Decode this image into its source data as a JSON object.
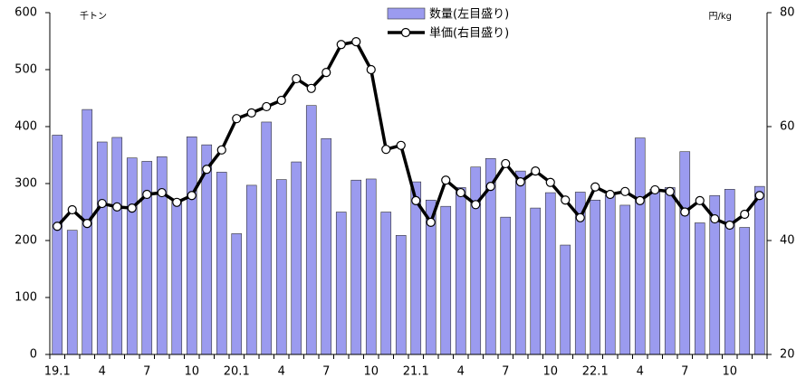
{
  "chart_data": {
    "type": "bar-line",
    "left_unit": "千トン",
    "right_unit": "円/kg",
    "categories": [
      "19.1",
      null,
      null,
      "4",
      null,
      null,
      "7",
      null,
      null,
      "10",
      null,
      null,
      "20.1",
      null,
      null,
      "4",
      null,
      null,
      "7",
      null,
      null,
      "10",
      null,
      null,
      "21.1",
      null,
      null,
      "4",
      null,
      null,
      "7",
      null,
      null,
      "10",
      null,
      null,
      "22.1",
      null,
      null,
      "4",
      null,
      null,
      "7",
      null,
      null,
      "10",
      null,
      null
    ],
    "series": [
      {
        "name": "数量(左目盛り)",
        "type": "bar",
        "axis": "y",
        "color": "#9b9bef",
        "values": [
          385,
          218,
          430,
          373,
          381,
          345,
          339,
          347,
          270,
          382,
          368,
          320,
          212,
          297,
          408,
          307,
          338,
          437,
          379,
          250,
          306,
          308,
          250,
          209,
          303,
          271,
          260,
          293,
          329,
          344,
          241,
          322,
          257,
          284,
          192,
          285,
          271,
          280,
          262,
          380,
          290,
          293,
          356,
          231,
          279,
          290,
          223,
          295
        ]
      },
      {
        "name": "単価(右目盛り)",
        "type": "line",
        "axis": "y2",
        "color": "#000000",
        "values": [
          42.5,
          45.4,
          43,
          46.5,
          45.9,
          45.7,
          48.1,
          48.4,
          46.7,
          47.9,
          52.5,
          55.9,
          61.4,
          62.4,
          63.5,
          64.6,
          68.4,
          66.7,
          69.5,
          74.4,
          74.9,
          70,
          56,
          56.7,
          47,
          43.2,
          50.6,
          48.4,
          46.3,
          49.5,
          53.5,
          50.3,
          52.2,
          50.2,
          47.1,
          44,
          49.4,
          48.1,
          48.6,
          47,
          48.9,
          48.6,
          45,
          47,
          43.8,
          42.7,
          44.6,
          47.9
        ]
      }
    ],
    "ylim": [
      0,
      600
    ],
    "yticks": [
      0,
      100,
      200,
      300,
      400,
      500,
      600
    ],
    "y2lim": [
      20,
      80
    ],
    "y2ticks": [
      20,
      40,
      60,
      80
    ],
    "grid": false,
    "legend": "top"
  }
}
